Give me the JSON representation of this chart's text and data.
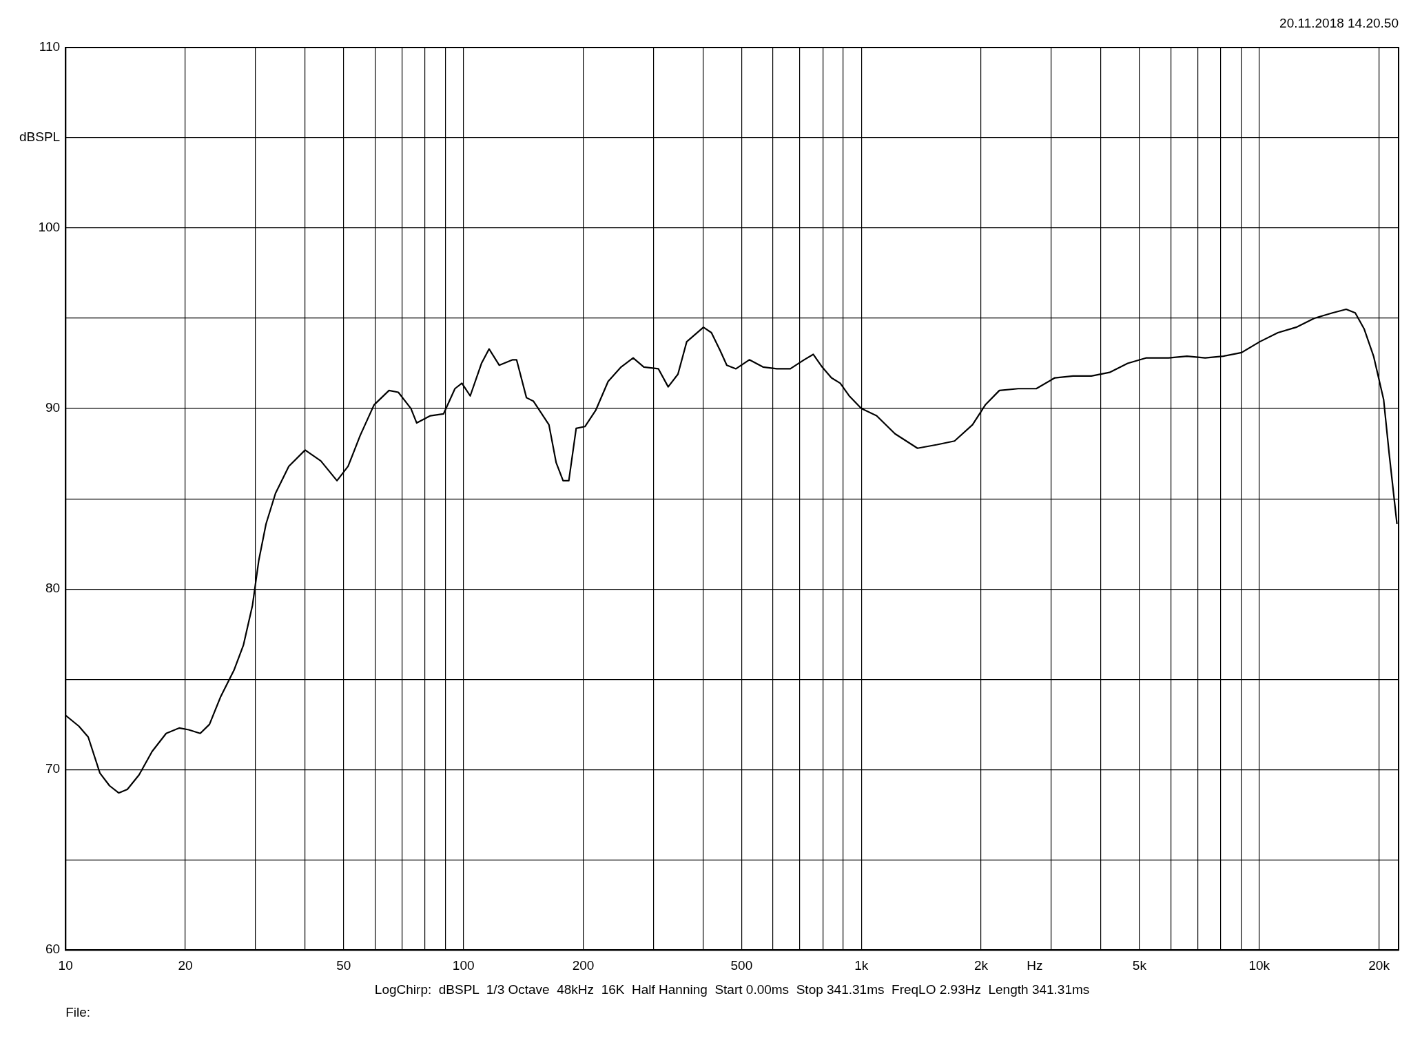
{
  "chart_data": {
    "type": "line",
    "xlabel": "Hz",
    "annotations": [
      "20.11.2018 14.20.50",
      "LogChirp:  dBSPL  1/3 Octave  48kHz  16K  Half Hanning  Start 0.00ms  Stop 341.31ms  FreqLO 2.93Hz  Length 341.31ms",
      "File:"
    ],
    "log": "x",
    "grid": true,
    "marker": "none",
    "line_style": "solid",
    "xlim": [
      10,
      22400
    ],
    "xticks": [
      10,
      20,
      {
        "value": 30,
        "label": null
      },
      {
        "value": 40,
        "label": null
      },
      50,
      {
        "value": 60,
        "label": null
      },
      {
        "value": 70,
        "label": null
      },
      {
        "value": 80,
        "label": null
      },
      {
        "value": 90,
        "label": null
      },
      100,
      200,
      {
        "value": 300,
        "label": null
      },
      {
        "value": 400,
        "label": null
      },
      500,
      {
        "value": 600,
        "label": null
      },
      {
        "value": 700,
        "label": null
      },
      {
        "value": 800,
        "label": null
      },
      {
        "value": 900,
        "label": null
      },
      {
        "value": 1000,
        "label": "1k"
      },
      {
        "value": 2000,
        "label": "2k"
      },
      {
        "value": 3000,
        "label": null
      },
      {
        "value": 4000,
        "label": null
      },
      {
        "value": 5000,
        "label": "5k"
      },
      {
        "value": 6000,
        "label": null
      },
      {
        "value": 7000,
        "label": null
      },
      {
        "value": 8000,
        "label": null
      },
      {
        "value": 9000,
        "label": null
      },
      {
        "value": 10000,
        "label": "10k"
      },
      {
        "value": 20000,
        "label": "20k"
      }
    ],
    "ylim": [
      60,
      110
    ],
    "yticks": [
      60,
      {
        "value": 65,
        "label": null
      },
      70,
      {
        "value": 75,
        "label": null
      },
      80,
      {
        "value": 85,
        "label": null
      },
      90,
      {
        "value": 95,
        "label": null
      },
      100,
      {
        "value": 105,
        "label": "dBSPL"
      },
      110
    ],
    "series": [
      {
        "color": "#000000",
        "x": [
          10,
          10.8,
          11.4,
          12.2,
          12.9,
          13.6,
          14.3,
          15.3,
          16.5,
          17.9,
          19.3,
          20.4,
          21.8,
          23,
          24.5,
          26.5,
          28,
          29.5,
          30.6,
          31.9,
          33.7,
          36.4,
          40,
          43.8,
          48.1,
          51.3,
          55,
          59.6,
          65,
          68.6,
          73.8,
          76.3,
          82.6,
          89.1,
          95.2,
          99.1,
          104,
          111,
          116,
          123,
          133,
          136,
          144,
          150,
          164,
          171,
          178,
          184,
          192,
          202,
          215,
          231,
          249,
          267,
          284,
          309,
          327,
          346,
          364,
          401,
          420,
          442,
          459,
          484,
          523,
          566,
          613,
          663,
          718,
          757,
          797,
          841,
          885,
          932,
          1000,
          1092,
          1215,
          1384,
          1551,
          1715,
          1903,
          2049,
          2223,
          2477,
          2752,
          3064,
          3406,
          3785,
          4205,
          4670,
          5190,
          5920,
          6583,
          7312,
          8126,
          9028,
          10030,
          11140,
          12380,
          13760,
          15280,
          16540,
          17430,
          18360,
          19380,
          20540,
          21210,
          22190
        ],
        "values": [
          73.0,
          72.4,
          71.8,
          69.8,
          69.1,
          68.7,
          68.9,
          69.7,
          71.0,
          72.0,
          72.3,
          72.2,
          72.0,
          72.5,
          74.0,
          75.5,
          76.9,
          79.1,
          81.6,
          83.6,
          85.3,
          86.8,
          87.7,
          87.1,
          86.0,
          86.8,
          88.5,
          90.2,
          91.0,
          90.9,
          90.0,
          89.2,
          89.6,
          89.7,
          91.1,
          91.4,
          90.7,
          92.5,
          93.3,
          92.4,
          92.7,
          92.7,
          90.6,
          90.4,
          89.1,
          87.0,
          86.0,
          86.0,
          88.9,
          89.0,
          89.9,
          91.5,
          92.3,
          92.8,
          92.3,
          92.2,
          91.2,
          91.9,
          93.7,
          94.5,
          94.2,
          93.2,
          92.4,
          92.2,
          92.7,
          92.3,
          92.2,
          92.2,
          92.7,
          93.0,
          92.3,
          91.7,
          91.4,
          90.7,
          90.0,
          89.6,
          88.6,
          87.8,
          88.0,
          88.2,
          89.1,
          90.2,
          91.0,
          91.1,
          91.1,
          91.7,
          91.8,
          91.8,
          92.0,
          92.5,
          92.8,
          92.8,
          92.9,
          92.8,
          92.9,
          93.1,
          93.7,
          94.2,
          94.5,
          95.0,
          95.3,
          95.5,
          95.3,
          94.4,
          92.9,
          90.5,
          87.5,
          83.6
        ]
      }
    ]
  }
}
